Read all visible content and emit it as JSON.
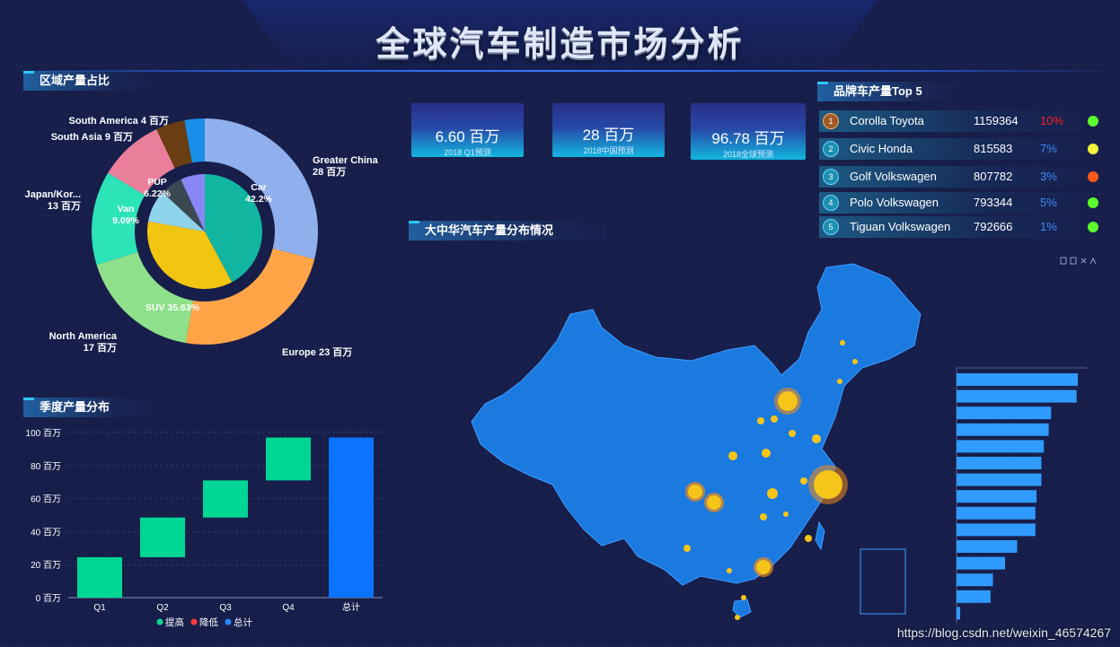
{
  "header": {
    "title": "全球汽车制造市场分析"
  },
  "sections": {
    "region": "区域产量占比",
    "quarter": "季度产量分布",
    "map": "大中华汽车产量分布情况",
    "brand": "品牌车产量Top 5"
  },
  "kpis": [
    {
      "value": "6.60 百万",
      "label": "2018 Q1预测"
    },
    {
      "value": "28 百万",
      "label": "2018中国预测"
    },
    {
      "value": "96.78 百万",
      "label": "2018全球预测"
    }
  ],
  "brands": [
    {
      "rank": "1",
      "name": "Corolla  Toyota",
      "value": "1159364",
      "pct": "10%",
      "pct_color": "#ff2020",
      "dot": "#5cff2e"
    },
    {
      "rank": "2",
      "name": "Civic  Honda",
      "value": "815583",
      "pct": "7%",
      "pct_color": "#3d8bff",
      "dot": "#f2f53a"
    },
    {
      "rank": "3",
      "name": "Golf  Volkswagen",
      "value": "807782",
      "pct": "3%",
      "pct_color": "#3d8bff",
      "dot": "#ff5a1a"
    },
    {
      "rank": "4",
      "name": "Polo  Volkswagen",
      "value": "793344",
      "pct": "5%",
      "pct_color": "#3d8bff",
      "dot": "#5cff2e"
    },
    {
      "rank": "5",
      "name": "Tiguan  Volkswagen",
      "value": "792666",
      "pct": "1%",
      "pct_color": "#3d8bff",
      "dot": "#5cff2e"
    }
  ],
  "watermark": "https://blog.csdn.net/weixin_46574267",
  "chart_data": [
    {
      "type": "pie",
      "title": "",
      "outer": [
        {
          "name": "Greater China",
          "value": 28,
          "unit": "百万",
          "color": "#8fb0ec"
        },
        {
          "name": "Europe",
          "value": 23,
          "unit": "百万",
          "color": "#ffa548"
        },
        {
          "name": "North America",
          "value": 17,
          "unit": "百万",
          "color": "#8fe08a"
        },
        {
          "name": "Japan/Kor...",
          "value": 13,
          "unit": "百万",
          "color": "#2de3b8"
        },
        {
          "name": "South Asia",
          "value": 9,
          "unit": "百万",
          "color": "#ea7f9c"
        },
        {
          "name": "South America",
          "value": 4,
          "unit": "百万",
          "color": "#6b3d12"
        },
        {
          "name": "",
          "value": 2.8,
          "color": "#1a8fe8"
        }
      ],
      "inner": [
        {
          "name": "Car",
          "value": 42.2,
          "label": "42.2%",
          "color": "#12b5a0"
        },
        {
          "name": "SUV",
          "value": 35.63,
          "label": "35.63%",
          "color": "#f2c511"
        },
        {
          "name": "Van",
          "value": 9.09,
          "label": "9.09%",
          "color": "#8fd4ea"
        },
        {
          "name": "PUP",
          "value": 6.22,
          "label": "6.22%",
          "color": "#3a4852"
        },
        {
          "name": "",
          "value": 6.86,
          "color": "#8787f5"
        }
      ]
    },
    {
      "type": "bar",
      "title": "",
      "categories": [
        "Q1",
        "Q2",
        "Q3",
        "Q4",
        "总计"
      ],
      "bases": [
        0,
        24.5,
        48.5,
        71,
        0
      ],
      "values": [
        24.5,
        24,
        22.5,
        26,
        97
      ],
      "kinds": [
        "提高",
        "提高",
        "提高",
        "提高",
        "总计"
      ],
      "yticks": [
        "0 百万",
        "20 百万",
        "40 百万",
        "60 百万",
        "80 百万",
        "100 百万"
      ],
      "ylim": [
        0,
        100
      ],
      "legend": [
        {
          "name": "提高",
          "color": "#12d394"
        },
        {
          "name": "降低",
          "color": "#ff3b3b"
        },
        {
          "name": "总计",
          "color": "#1f8bff"
        }
      ],
      "colors": {
        "提高": "#00d694",
        "总计": "#0a74ff"
      }
    },
    {
      "type": "bar",
      "orientation": "horizontal",
      "title": "",
      "values": [
        100,
        99,
        78,
        76,
        72,
        70,
        70,
        66,
        65,
        65,
        50,
        40,
        30,
        28,
        3
      ],
      "color": "#2f9bff"
    }
  ]
}
